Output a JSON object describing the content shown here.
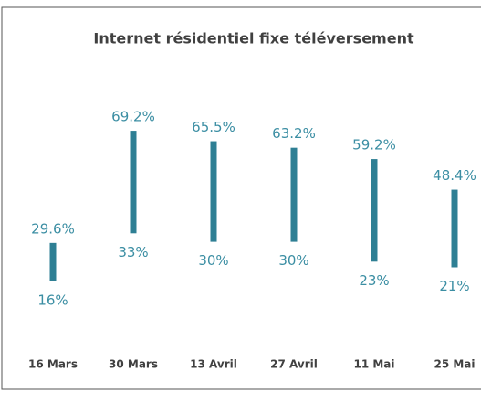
{
  "chart_data": {
    "type": "range",
    "title": "Internet résidentiel fixe téléversement",
    "categories": [
      "16 Mars",
      "30 Mars",
      "13 Avril",
      "27 Avril",
      "11 Mai",
      "25 Mai"
    ],
    "color": "#2e7f94",
    "high": {
      "values": [
        29.6,
        69.2,
        65.5,
        63.2,
        59.2,
        48.4
      ],
      "value_labels": [
        "29.6%",
        "69.2%",
        "65.5%",
        "63.2%",
        "59.2%",
        "48.4%"
      ]
    },
    "low": {
      "values": [
        16,
        33,
        30,
        30,
        23,
        21
      ],
      "value_labels": [
        "16%",
        "33%",
        "30%",
        "30%",
        "23%",
        "21%"
      ]
    }
  }
}
